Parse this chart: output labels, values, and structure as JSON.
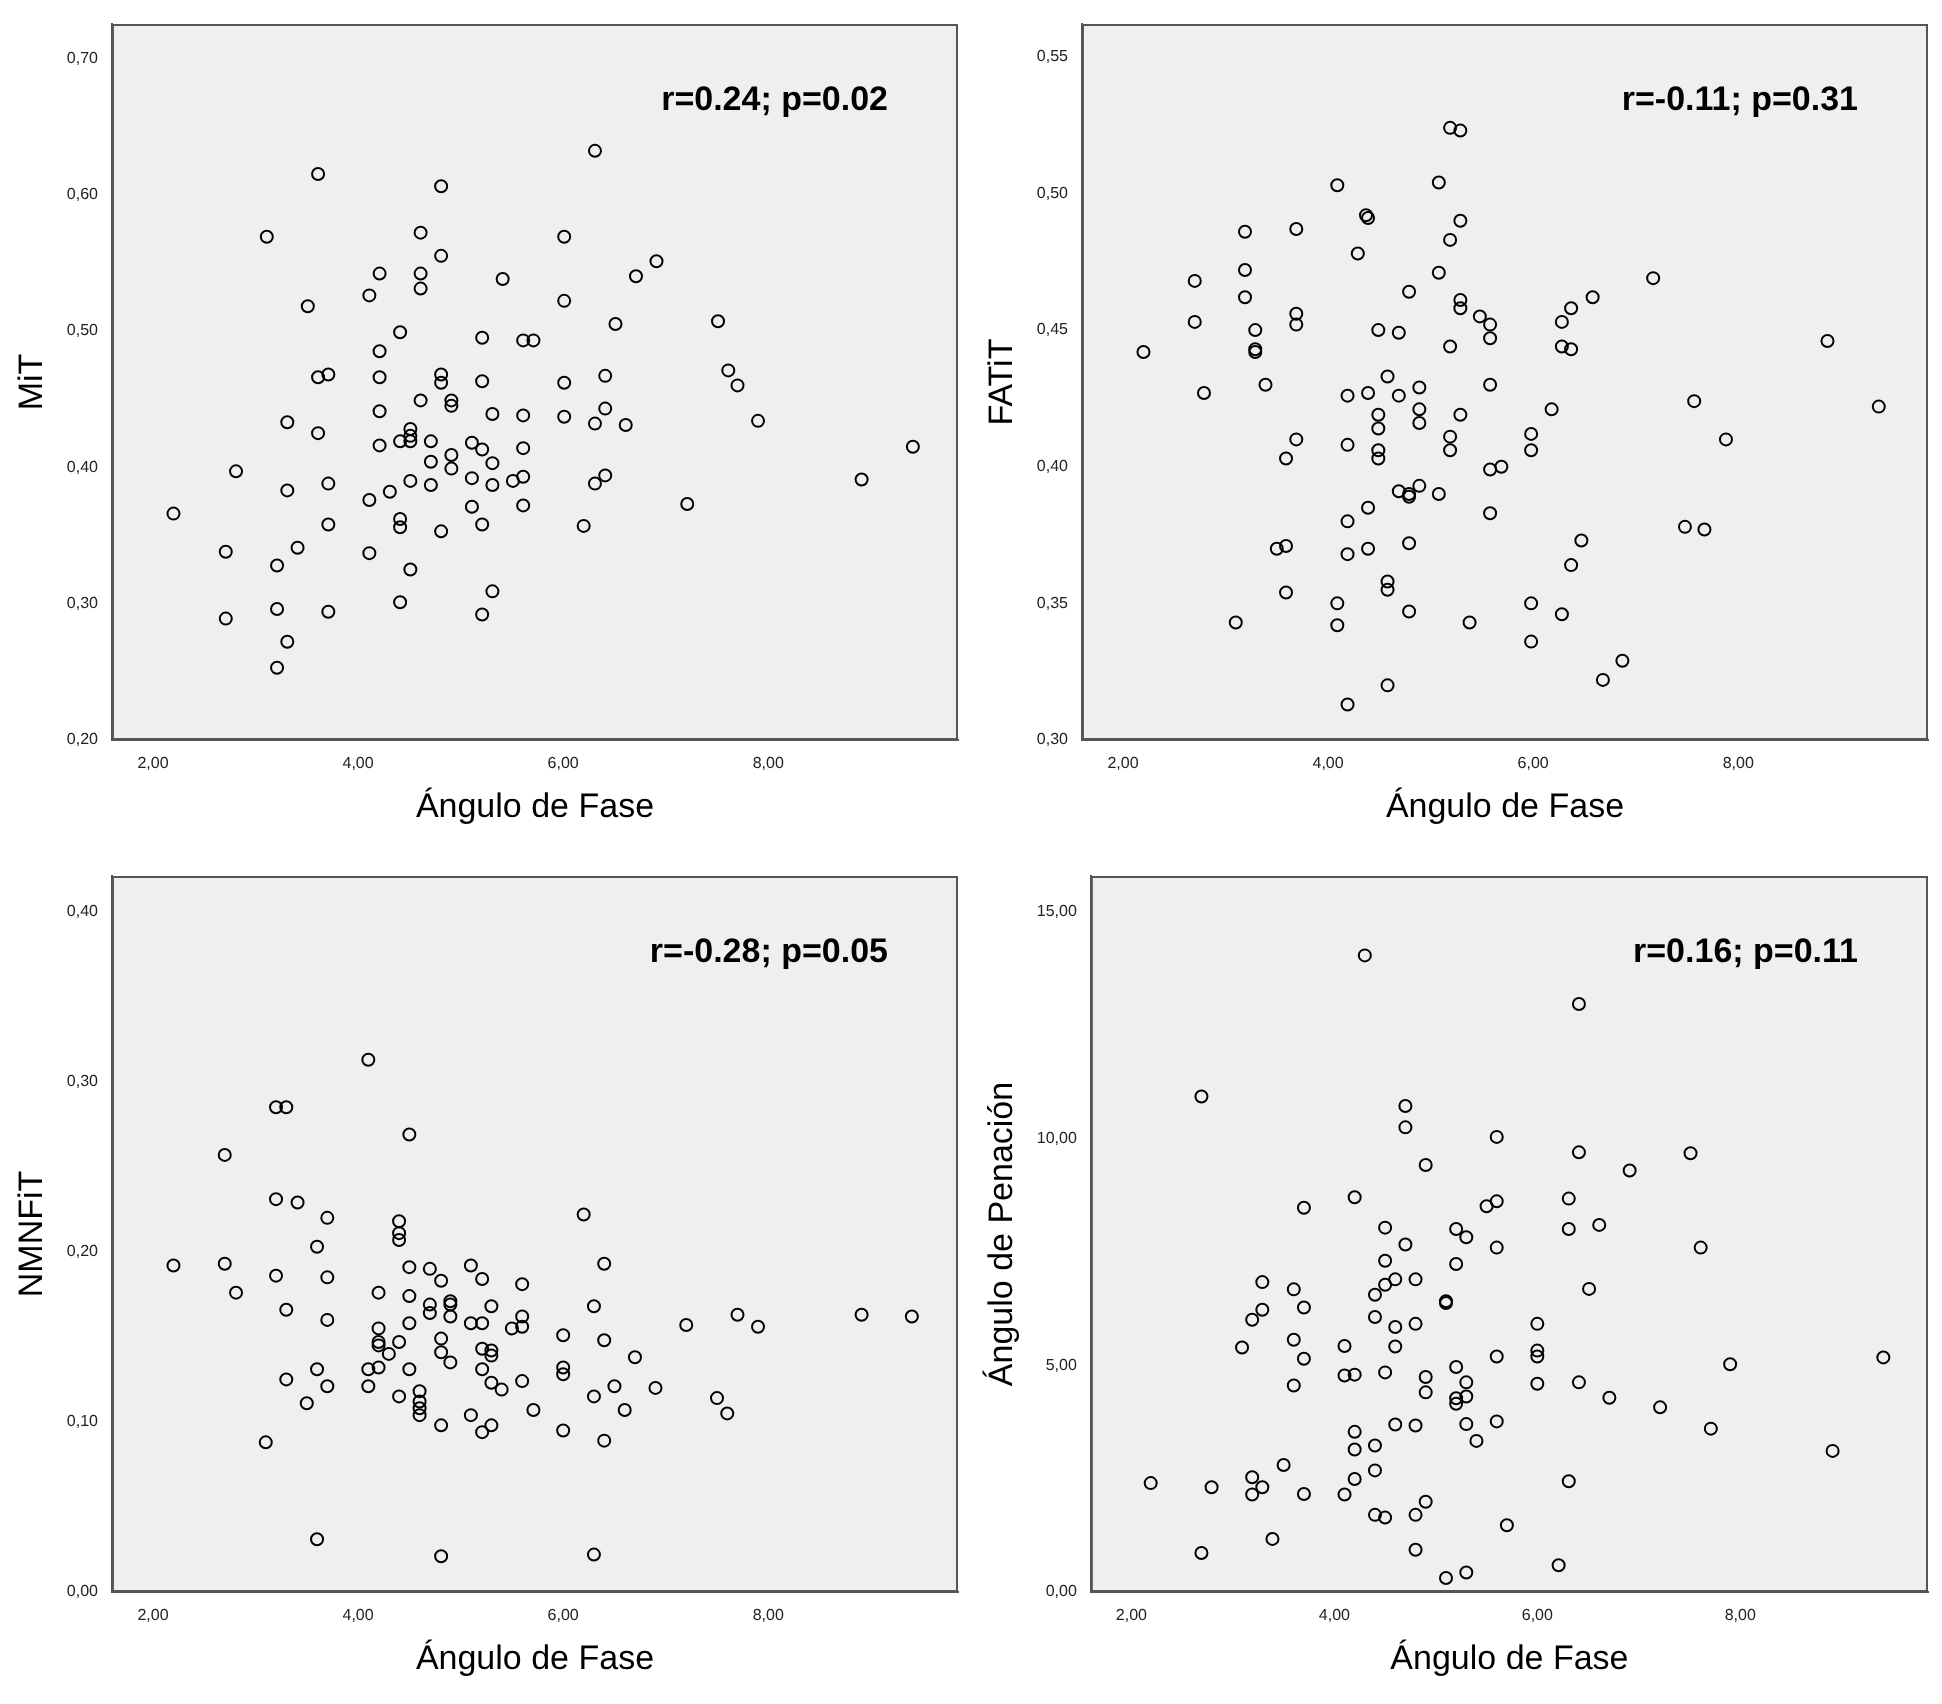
{
  "chart_data": [
    {
      "type": "scatter",
      "xlabel": "Ángulo de Fase",
      "ylabel": "MiT",
      "annotations": [
        "r=0.24; p=0.02"
      ],
      "color": "#000000",
      "marker": "circle",
      "xlim": [
        1.6,
        9.85
      ],
      "ylim": [
        0.2,
        0.725
      ],
      "xticks": [
        {
          "value": 2,
          "label": "2,00"
        },
        {
          "value": 4,
          "label": "4,00"
        },
        {
          "value": 6,
          "label": "6,00"
        },
        {
          "value": 8,
          "label": "8,00"
        }
      ],
      "yticks": [
        {
          "value": 0.2,
          "label": "0,20"
        },
        {
          "value": 0.3,
          "label": "0,30"
        },
        {
          "value": 0.4,
          "label": "0,40"
        },
        {
          "value": 0.5,
          "label": "0,50"
        },
        {
          "value": 0.6,
          "label": "0,60"
        },
        {
          "value": 0.7,
          "label": "0,70"
        }
      ],
      "x": [
        6.31,
        3.61,
        4.81,
        3.11,
        6.01,
        4.61,
        4.81,
        6.91,
        6.71,
        4.21,
        4.61,
        4.61,
        4.11,
        5.41,
        6.01,
        3.51,
        7.51,
        6.51,
        4.41,
        5.21,
        5.61,
        5.71,
        4.21,
        3.61,
        3.71,
        4.21,
        4.81,
        4.81,
        5.21,
        6.01,
        6.41,
        7.61,
        7.7,
        4.61,
        4.91,
        4.91,
        4.21,
        5.31,
        5.61,
        6.01,
        6.41,
        6.31,
        6.61,
        7.9,
        3.31,
        3.61,
        4.51,
        4.51,
        4.41,
        4.51,
        4.21,
        4.71,
        5.11,
        5.21,
        5.61,
        9.41,
        4.71,
        4.91,
        4.91,
        5.31,
        2.81,
        5.11,
        5.31,
        5.51,
        5.61,
        4.51,
        4.71,
        3.71,
        3.31,
        4.31,
        4.11,
        6.31,
        6.41,
        8.91,
        7.21,
        5.61,
        5.11,
        2.2,
        4.41,
        4.41,
        3.71,
        5.21,
        4.81,
        6.2,
        2.71,
        4.11,
        3.41,
        3.21,
        4.51,
        5.31,
        4.41,
        2.71,
        3.21,
        3.71,
        5.21,
        3.31,
        3.21
      ],
      "values": [
        0.632,
        0.615,
        0.606,
        0.569,
        0.569,
        0.572,
        0.555,
        0.551,
        0.54,
        0.542,
        0.542,
        0.531,
        0.526,
        0.538,
        0.522,
        0.518,
        0.507,
        0.505,
        0.499,
        0.495,
        0.493,
        0.493,
        0.485,
        0.466,
        0.468,
        0.466,
        0.468,
        0.462,
        0.463,
        0.462,
        0.467,
        0.471,
        0.46,
        0.449,
        0.449,
        0.445,
        0.441,
        0.439,
        0.438,
        0.437,
        0.443,
        0.432,
        0.431,
        0.434,
        0.433,
        0.425,
        0.428,
        0.423,
        0.419,
        0.419,
        0.416,
        0.419,
        0.418,
        0.413,
        0.414,
        0.415,
        0.404,
        0.409,
        0.399,
        0.403,
        0.397,
        0.392,
        0.387,
        0.39,
        0.393,
        0.39,
        0.387,
        0.388,
        0.383,
        0.382,
        0.376,
        0.388,
        0.394,
        0.391,
        0.373,
        0.372,
        0.371,
        0.366,
        0.362,
        0.356,
        0.358,
        0.358,
        0.353,
        0.357,
        0.338,
        0.337,
        0.341,
        0.328,
        0.325,
        0.309,
        0.301,
        0.289,
        0.296,
        0.294,
        0.292,
        0.272,
        0.253
      ]
    },
    {
      "type": "scatter",
      "xlabel": "Ángulo de Fase",
      "ylabel": "FATiT",
      "annotations": [
        "r=-0.11; p=0.31"
      ],
      "color": "#000000",
      "marker": "circle",
      "xlim": [
        1.6,
        9.85
      ],
      "ylim": [
        0.3,
        0.562
      ],
      "xticks": [
        {
          "value": 2,
          "label": "2,00"
        },
        {
          "value": 4,
          "label": "4,00"
        },
        {
          "value": 6,
          "label": "6,00"
        },
        {
          "value": 8,
          "label": "8,00"
        }
      ],
      "yticks": [
        {
          "value": 0.3,
          "label": "0,30"
        },
        {
          "value": 0.35,
          "label": "0,35"
        },
        {
          "value": 0.4,
          "label": "0,40"
        },
        {
          "value": 0.45,
          "label": "0,45"
        },
        {
          "value": 0.5,
          "label": "0,50"
        },
        {
          "value": 0.55,
          "label": "0,55"
        }
      ],
      "x": [
        5.19,
        5.29,
        5.08,
        4.09,
        4.39,
        4.37,
        5.29,
        3.19,
        3.69,
        5.19,
        4.29,
        3.19,
        5.08,
        2.7,
        7.17,
        4.79,
        3.19,
        5.29,
        6.58,
        5.29,
        6.37,
        3.69,
        3.69,
        5.48,
        5.58,
        2.7,
        6.28,
        3.29,
        4.49,
        4.69,
        5.58,
        8.87,
        2.2,
        3.29,
        3.29,
        5.19,
        6.28,
        6.37,
        4.58,
        3.39,
        5.58,
        2.79,
        4.19,
        4.39,
        4.69,
        4.89,
        6.18,
        9.37,
        7.57,
        4.49,
        4.89,
        5.29,
        4.49,
        4.89,
        3.69,
        5.19,
        5.98,
        7.88,
        4.19,
        4.49,
        5.19,
        5.98,
        3.59,
        4.49,
        5.58,
        5.69,
        4.89,
        4.69,
        4.79,
        4.79,
        5.08,
        4.39,
        5.58,
        4.19,
        7.48,
        7.67,
        3.5,
        3.59,
        4.79,
        6.47,
        4.39,
        4.19,
        6.37,
        4.58,
        4.58,
        3.59,
        5.98,
        4.09,
        6.28,
        4.79,
        3.1,
        4.09,
        5.38,
        5.98,
        6.87,
        6.68,
        4.58,
        4.19
      ],
      "values": [
        0.524,
        0.523,
        0.504,
        0.503,
        0.491,
        0.492,
        0.49,
        0.486,
        0.487,
        0.483,
        0.478,
        0.472,
        0.471,
        0.468,
        0.469,
        0.464,
        0.462,
        0.461,
        0.462,
        0.458,
        0.458,
        0.456,
        0.452,
        0.455,
        0.452,
        0.453,
        0.453,
        0.45,
        0.45,
        0.449,
        0.447,
        0.446,
        0.442,
        0.443,
        0.442,
        0.444,
        0.444,
        0.443,
        0.433,
        0.43,
        0.43,
        0.427,
        0.426,
        0.427,
        0.426,
        0.429,
        0.421,
        0.422,
        0.424,
        0.419,
        0.421,
        0.419,
        0.414,
        0.416,
        0.41,
        0.411,
        0.412,
        0.41,
        0.408,
        0.406,
        0.406,
        0.406,
        0.403,
        0.403,
        0.399,
        0.4,
        0.393,
        0.391,
        0.39,
        0.389,
        0.39,
        0.385,
        0.383,
        0.38,
        0.378,
        0.377,
        0.37,
        0.371,
        0.372,
        0.373,
        0.37,
        0.368,
        0.364,
        0.358,
        0.355,
        0.354,
        0.35,
        0.35,
        0.346,
        0.347,
        0.343,
        0.342,
        0.343,
        0.336,
        0.329,
        0.322,
        0.32,
        0.313
      ]
    },
    {
      "type": "scatter",
      "xlabel": "Ángulo de Fase",
      "ylabel": "NMNFiT",
      "annotations": [
        "r=-0.28; p=0.05"
      ],
      "color": "#000000",
      "marker": "circle",
      "xlim": [
        1.6,
        9.85
      ],
      "ylim": [
        0,
        0.421
      ],
      "xticks": [
        {
          "value": 2,
          "label": "2,00"
        },
        {
          "value": 4,
          "label": "4,00"
        },
        {
          "value": 6,
          "label": "6,00"
        },
        {
          "value": 8,
          "label": "8,00"
        }
      ],
      "yticks": [
        {
          "value": 0,
          "label": "0,00"
        },
        {
          "value": 0.1,
          "label": "0,10"
        },
        {
          "value": 0.2,
          "label": "0,20"
        },
        {
          "value": 0.3,
          "label": "0,30"
        },
        {
          "value": 0.4,
          "label": "0,40"
        }
      ],
      "x": [
        4.1,
        3.2,
        3.3,
        4.5,
        2.7,
        3.2,
        3.41,
        3.7,
        6.2,
        4.4,
        4.4,
        4.4,
        3.6,
        2.2,
        2.7,
        4.5,
        4.7,
        5.1,
        6.4,
        3.2,
        3.7,
        4.81,
        5.21,
        5.6,
        2.81,
        4.2,
        4.5,
        4.9,
        4.9,
        4.7,
        4.7,
        3.3,
        5.3,
        6.3,
        4.9,
        5.6,
        7.7,
        8.91,
        9.4,
        3.7,
        4.5,
        5.1,
        5.21,
        7.2,
        7.9,
        5.5,
        5.6,
        4.2,
        6,
        4.81,
        4.2,
        4.2,
        4.4,
        6.4,
        5.21,
        5.3,
        5.3,
        4.81,
        4.3,
        4.9,
        6.7,
        3.6,
        4.1,
        4.2,
        4.5,
        5.21,
        6,
        6,
        3.3,
        5.6,
        3.7,
        4.1,
        5.3,
        5.4,
        6.5,
        6.9,
        4.4,
        4.6,
        4.6,
        4.6,
        4.6,
        6.3,
        7.5,
        3.5,
        5.71,
        6.6,
        7.6,
        5.1,
        4.81,
        5.3,
        5.21,
        6,
        3.1,
        6.4,
        3.6,
        4.81,
        6.3
      ],
      "values": [
        0.313,
        0.285,
        0.285,
        0.269,
        0.257,
        0.231,
        0.229,
        0.22,
        0.222,
        0.218,
        0.211,
        0.207,
        0.203,
        0.192,
        0.193,
        0.191,
        0.19,
        0.192,
        0.193,
        0.186,
        0.185,
        0.183,
        0.184,
        0.181,
        0.176,
        0.176,
        0.174,
        0.171,
        0.169,
        0.169,
        0.164,
        0.166,
        0.168,
        0.168,
        0.162,
        0.162,
        0.163,
        0.163,
        0.162,
        0.16,
        0.158,
        0.158,
        0.158,
        0.157,
        0.156,
        0.155,
        0.156,
        0.155,
        0.151,
        0.149,
        0.147,
        0.145,
        0.147,
        0.148,
        0.143,
        0.142,
        0.139,
        0.141,
        0.14,
        0.135,
        0.138,
        0.131,
        0.131,
        0.132,
        0.131,
        0.131,
        0.132,
        0.128,
        0.125,
        0.124,
        0.121,
        0.121,
        0.123,
        0.119,
        0.121,
        0.12,
        0.115,
        0.118,
        0.112,
        0.108,
        0.104,
        0.115,
        0.114,
        0.111,
        0.107,
        0.107,
        0.105,
        0.104,
        0.098,
        0.098,
        0.094,
        0.095,
        0.088,
        0.089,
        0.031,
        0.021,
        0.022
      ]
    },
    {
      "type": "scatter",
      "xlabel": "Ángulo de Fase",
      "ylabel": "Ángulo de Penación",
      "annotations": [
        "r=0.16; p=0.11"
      ],
      "color": "#000000",
      "marker": "circle",
      "xlim": [
        1.6,
        9.85
      ],
      "ylim": [
        0,
        15.78
      ],
      "xticks": [
        {
          "value": 2,
          "label": "2,00"
        },
        {
          "value": 4,
          "label": "4,00"
        },
        {
          "value": 6,
          "label": "6,00"
        },
        {
          "value": 8,
          "label": "8,00"
        }
      ],
      "yticks": [
        {
          "value": 0,
          "label": "0,00"
        },
        {
          "value": 5,
          "label": "5,00"
        },
        {
          "value": 10,
          "label": "10,00"
        },
        {
          "value": 15,
          "label": "15,00"
        }
      ],
      "x": [
        4.3,
        6.41,
        2.69,
        4.7,
        4.7,
        5.6,
        6.41,
        7.51,
        6.91,
        4.9,
        4.2,
        6.31,
        3.7,
        5.5,
        5.6,
        4.5,
        5.2,
        5.3,
        6.31,
        6.61,
        4.7,
        5.6,
        7.61,
        5.2,
        4.5,
        3.29,
        3.6,
        4.6,
        4.5,
        4.8,
        4.4,
        6.51,
        5.1,
        5.1,
        3.29,
        3.7,
        3.19,
        4.4,
        4.6,
        4.8,
        6,
        3.09,
        3.6,
        4.1,
        4.6,
        6,
        6,
        3.7,
        5.6,
        9.41,
        7.9,
        5.2,
        4.1,
        4.2,
        4.5,
        4.9,
        3.6,
        5.3,
        6,
        6.41,
        4.9,
        5.2,
        5.2,
        5.3,
        6.71,
        7.21,
        4.6,
        4.8,
        5.3,
        5.6,
        7.71,
        4.2,
        4.4,
        5.4,
        4.2,
        8.91,
        3.5,
        4.4,
        2.19,
        2.79,
        3.19,
        3.29,
        3.19,
        3.7,
        4.1,
        4.2,
        6.31,
        4.9,
        4.4,
        4.5,
        4.8,
        5.7,
        3.39,
        2.69,
        4.8,
        6.21,
        5.3,
        5.1
      ],
      "values": [
        14.03,
        12.96,
        10.92,
        10.71,
        10.24,
        10.03,
        9.69,
        9.67,
        9.29,
        9.41,
        8.7,
        8.67,
        8.47,
        8.5,
        8.61,
        8.03,
        8,
        7.82,
        8,
        8.09,
        7.66,
        7.59,
        7.59,
        7.23,
        7.3,
        6.83,
        6.67,
        6.89,
        6.77,
        6.89,
        6.55,
        6.68,
        6.41,
        6.37,
        6.22,
        6.27,
        6,
        6.06,
        5.84,
        5.91,
        5.91,
        5.39,
        5.56,
        5.42,
        5.41,
        5.32,
        5.19,
        5.14,
        5.19,
        5.17,
        5.02,
        4.96,
        4.77,
        4.79,
        4.84,
        4.74,
        4.55,
        4.62,
        4.59,
        4.62,
        4.4,
        4.27,
        4.15,
        4.31,
        4.28,
        4.07,
        3.69,
        3.67,
        3.7,
        3.76,
        3.6,
        3.53,
        3.23,
        3.33,
        3.14,
        3.11,
        2.8,
        2.68,
        2.4,
        2.31,
        2.53,
        2.31,
        2.15,
        2.16,
        2.15,
        2.49,
        2.44,
        1.99,
        1.7,
        1.64,
        1.7,
        1.47,
        1.17,
        0.86,
        0.93,
        0.59,
        0.43,
        0.31
      ]
    }
  ]
}
